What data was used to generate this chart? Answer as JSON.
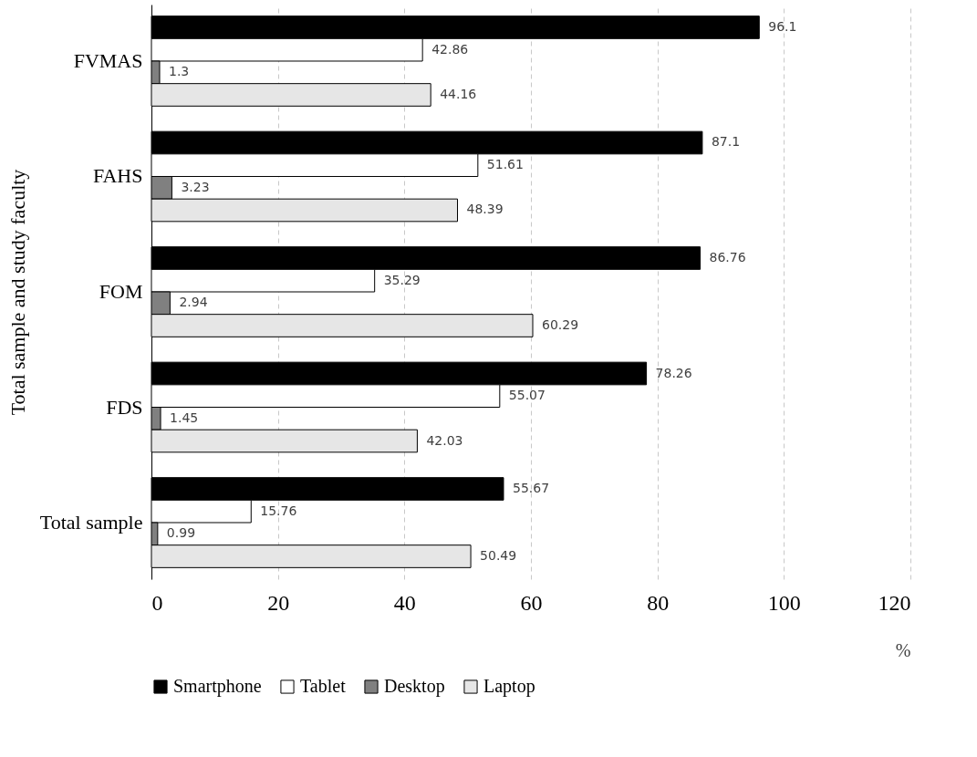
{
  "chart_data": {
    "type": "bar",
    "orientation": "horizontal",
    "ylabel": "Total sample and study faculty",
    "xlabel": "%",
    "categories": [
      "FVMAS",
      "FAHS",
      "FOM",
      "FDS",
      "Total sample"
    ],
    "series": [
      {
        "name": "Smartphone",
        "color": "#000000",
        "values": [
          96.1,
          87.1,
          86.76,
          78.26,
          55.67
        ]
      },
      {
        "name": "Tablet",
        "color": "#ffffff",
        "values": [
          42.86,
          51.61,
          35.29,
          55.07,
          15.76
        ]
      },
      {
        "name": "Desktop",
        "color": "#808080",
        "values": [
          1.3,
          3.23,
          2.94,
          1.45,
          0.99
        ]
      },
      {
        "name": "Laptop",
        "color": "#e6e6e6",
        "values": [
          44.16,
          48.39,
          60.29,
          42.03,
          50.49
        ]
      }
    ],
    "xlim": [
      0,
      120
    ],
    "xticks": [
      0,
      20,
      40,
      60,
      80,
      100,
      120
    ],
    "grid": "x",
    "legend": "bottom",
    "data_labels": true
  }
}
